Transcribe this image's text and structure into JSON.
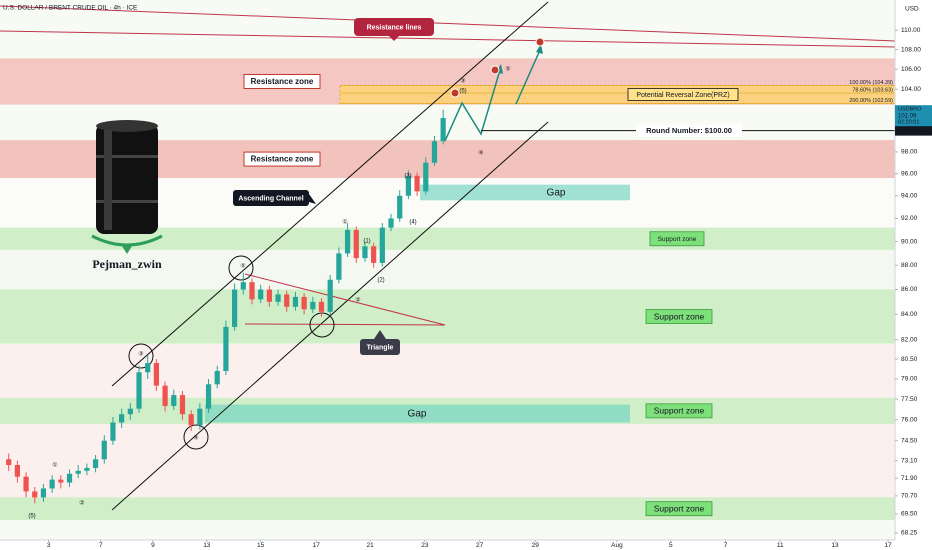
{
  "header": {
    "title": "U.S. DOLLAR / BRENT CRUDE OIL · 4h · ICE",
    "currency": "USD"
  },
  "watermark": {
    "author": "Pejman_zwin"
  },
  "chart_data": {
    "type": "candlestick",
    "up_color": "#26a69a",
    "down_color": "#ef5350",
    "log_scale": true,
    "x": [
      1,
      2,
      3,
      4,
      5,
      6,
      7,
      8,
      9,
      10,
      11,
      12,
      13,
      14,
      15,
      16,
      17,
      18,
      19,
      20,
      21,
      22,
      23,
      24,
      25,
      26,
      27,
      28,
      29,
      30,
      31,
      32,
      33,
      34,
      35,
      36,
      37,
      38,
      39,
      40,
      41,
      42,
      43,
      44,
      45,
      46,
      47,
      48,
      49,
      50,
      51
    ],
    "open": [
      73.2,
      72.8,
      72.0,
      71.0,
      70.6,
      71.2,
      71.8,
      71.6,
      72.2,
      72.4,
      72.6,
      73.2,
      74.5,
      75.8,
      76.4,
      76.8,
      79.5,
      80.2,
      78.5,
      77.0,
      77.8,
      76.4,
      75.6,
      76.8,
      78.6,
      79.6,
      83.0,
      86.0,
      86.6,
      85.2,
      86.0,
      85.0,
      85.6,
      84.6,
      85.4,
      84.4,
      85.0,
      84.2,
      86.8,
      89.0,
      91.0,
      88.6,
      89.6,
      88.2,
      91.2,
      92.0,
      94.0,
      95.8,
      94.4,
      97.0,
      99.0
    ],
    "high": [
      73.6,
      73.1,
      72.3,
      71.3,
      71.5,
      72.1,
      72.1,
      72.5,
      72.8,
      72.9,
      73.5,
      74.9,
      76.2,
      76.8,
      77.2,
      80.0,
      80.8,
      80.5,
      78.8,
      78.2,
      78.1,
      76.7,
      77.2,
      79.0,
      80.0,
      83.5,
      86.5,
      87.4,
      86.9,
      86.4,
      86.3,
      86.0,
      85.9,
      85.8,
      85.7,
      85.4,
      85.3,
      87.2,
      89.5,
      91.6,
      91.3,
      90.0,
      89.9,
      91.6,
      92.4,
      94.5,
      96.3,
      96.1,
      97.5,
      99.5,
      102.0
    ],
    "low": [
      72.4,
      71.6,
      70.6,
      70.2,
      70.3,
      70.9,
      71.2,
      71.3,
      71.9,
      72.1,
      72.3,
      72.9,
      74.2,
      75.4,
      76.0,
      76.5,
      79.0,
      78.1,
      76.6,
      76.7,
      76.0,
      75.2,
      75.3,
      76.5,
      78.3,
      79.3,
      82.7,
      85.6,
      84.8,
      84.9,
      84.6,
      84.7,
      84.2,
      84.3,
      84.0,
      84.1,
      83.8,
      83.9,
      86.5,
      88.7,
      88.2,
      88.3,
      87.8,
      87.9,
      90.9,
      91.7,
      93.7,
      94.0,
      94.1,
      96.7,
      98.7
    ],
    "close": [
      72.8,
      72.0,
      71.0,
      70.6,
      71.2,
      71.8,
      71.6,
      72.2,
      72.4,
      72.6,
      73.2,
      74.5,
      75.8,
      76.4,
      76.8,
      79.5,
      80.2,
      78.5,
      77.0,
      77.8,
      76.4,
      75.6,
      76.8,
      78.6,
      79.6,
      83.0,
      86.0,
      86.6,
      85.2,
      86.0,
      85.0,
      85.6,
      84.6,
      85.4,
      84.4,
      85.0,
      84.2,
      86.8,
      89.0,
      91.0,
      88.6,
      89.6,
      88.2,
      91.2,
      92.0,
      94.0,
      95.8,
      94.4,
      97.0,
      99.0,
      101.2
    ],
    "xlim": [
      0,
      103
    ],
    "xticks": [
      {
        "value": 5.6,
        "label": "3"
      },
      {
        "value": 11.6,
        "label": "7"
      },
      {
        "value": 17.6,
        "label": "9"
      },
      {
        "value": 23.8,
        "label": "13"
      },
      {
        "value": 30.0,
        "label": "15"
      },
      {
        "value": 36.4,
        "label": "17"
      },
      {
        "value": 42.6,
        "label": "21"
      },
      {
        "value": 48.9,
        "label": "23"
      },
      {
        "value": 55.2,
        "label": "27"
      },
      {
        "value": 61.6,
        "label": "29"
      },
      {
        "value": 71.0,
        "label": "Aug"
      },
      {
        "value": 77.2,
        "label": "5"
      },
      {
        "value": 83.5,
        "label": "7"
      },
      {
        "value": 89.8,
        "label": "11"
      },
      {
        "value": 96.1,
        "label": "13"
      },
      {
        "value": 102.2,
        "label": "17"
      }
    ],
    "ylim": [
      67.8,
      113.2
    ],
    "yticks": [
      68.25,
      {
        "value": 69.5,
        "label": "69.50"
      },
      {
        "value": 70.7,
        "label": "70.70"
      },
      {
        "value": 71.9,
        "label": "71.90"
      },
      {
        "value": 73.1,
        "label": "73.10"
      },
      {
        "value": 74.5,
        "label": "74.50"
      },
      {
        "value": 76,
        "label": "76.00"
      },
      {
        "value": 77.5,
        "label": "77.50"
      },
      {
        "value": 79,
        "label": "79.00"
      },
      {
        "value": 80.5,
        "label": "80.50"
      },
      {
        "value": 82,
        "label": "82.00"
      },
      {
        "value": 84,
        "label": "84.00"
      },
      {
        "value": 86,
        "label": "86.00"
      },
      {
        "value": 88,
        "label": "88.00"
      },
      {
        "value": 90,
        "label": "90.00"
      },
      {
        "value": 92,
        "label": "92.00"
      },
      {
        "value": 94,
        "label": "94.00"
      },
      {
        "value": 96,
        "label": "96.00"
      },
      {
        "value": 98,
        "label": "98.00"
      },
      {
        "value": 102,
        "label": "102.00"
      },
      {
        "value": 104,
        "label": "104.00"
      },
      {
        "value": 106,
        "label": "106.00"
      },
      {
        "value": 108,
        "label": "108.00"
      },
      {
        "value": 110,
        "label": "110.00"
      }
    ],
    "zones": [
      {
        "label": "Resistance zone",
        "low": 102.5,
        "high": 107.1,
        "color": "#f2b1ad"
      },
      {
        "label": "Resistance zone",
        "low": 95.6,
        "high": 99.1,
        "color": "#efaaa4"
      },
      {
        "label": "Gap",
        "low": 93.6,
        "high": 95.0,
        "color": "#8fdccc"
      },
      {
        "label": "Support zone",
        "low": 89.3,
        "high": 91.2,
        "color": "#bfe8b4"
      },
      {
        "label": "Support zone",
        "low": 81.7,
        "high": 86.0,
        "color": "#bfe8b4"
      },
      {
        "label": "Support zone",
        "low": 75.7,
        "high": 77.6,
        "color": "#bfe8b4"
      },
      {
        "label": "Gap",
        "low": 75.8,
        "high": 77.1,
        "color": "#86d9c2"
      },
      {
        "label": "Support zone",
        "low": 69.1,
        "high": 70.6,
        "color": "#bfe8b4"
      }
    ],
    "prz": {
      "label": "Potential Reversal Zone(PRZ)",
      "low": 102.59,
      "high": 104.39,
      "color": "#ffd66b",
      "levels": [
        {
          "label": "100.00% (104.39)",
          "value": 104.39
        },
        {
          "label": "78.60% (103.63)",
          "value": 103.63
        },
        {
          "label": "200.00% (102.59)",
          "value": 102.59
        }
      ]
    },
    "round_number": {
      "value": 100,
      "label": "Round Number: $100.00",
      "axis_label": "100.00"
    },
    "last_price": {
      "symbol": "USDBRO",
      "value": 101.09,
      "timer": "02:20:01"
    },
    "annotations": {
      "resistance_lines": "Resistance lines",
      "channel": "Ascending Channel",
      "triangle": "Triangle"
    },
    "wave_labels": [
      "(5)",
      "①",
      "②",
      "③",
      "④",
      "⑤",
      "①",
      "(1)",
      "(2)",
      "②",
      "(3)",
      "(4)",
      "(5)",
      "③",
      "④",
      "⑤"
    ]
  }
}
